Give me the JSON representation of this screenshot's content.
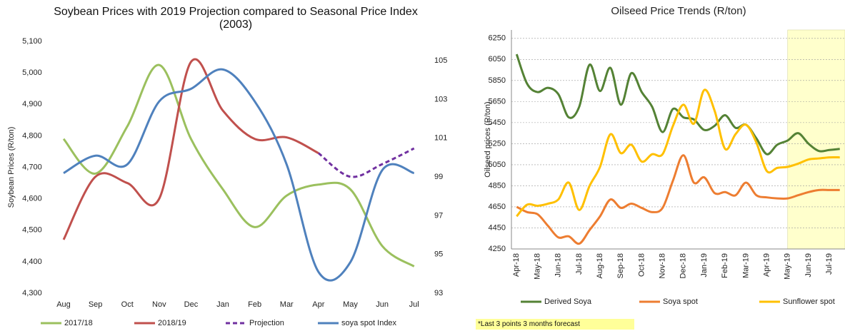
{
  "chart_data": [
    {
      "type": "line",
      "title": "Soybean Prices with 2019 Projection compared to Seasonal Price Index (2003)",
      "y_label": "Soybean Prices (R/ton)",
      "categories": [
        "Aug",
        "Sep",
        "Oct",
        "Nov",
        "Dec",
        "Jan",
        "Feb",
        "Mar",
        "Apr",
        "May",
        "Jun",
        "Jul"
      ],
      "ylim": [
        4300,
        5100
      ],
      "yticks": [
        {
          "value": 4300,
          "label": "4,300"
        },
        {
          "value": 4400,
          "label": "4,400"
        },
        {
          "value": 4500,
          "label": "4,500"
        },
        {
          "value": 4600,
          "label": "4,600"
        },
        {
          "value": 4700,
          "label": "4,700"
        },
        {
          "value": 4800,
          "label": "4,800"
        },
        {
          "value": 4900,
          "label": "4,900"
        },
        {
          "value": 5000,
          "label": "5,000"
        },
        {
          "value": 5100,
          "label": "5,100"
        }
      ],
      "y2lim": [
        93,
        106
      ],
      "y2ticks": [
        93,
        95,
        97,
        99,
        101,
        103,
        105
      ],
      "grid": false,
      "legend": "bottom",
      "series": [
        {
          "name": "2017/18",
          "color": "#9bc05e",
          "values": [
            4790,
            4680,
            4830,
            5025,
            4790,
            4630,
            4510,
            4610,
            4645,
            4630,
            4450,
            4385
          ]
        },
        {
          "name": "2018/19",
          "color": "#c0504d",
          "values": [
            4470,
            4670,
            4650,
            4600,
            5035,
            4880,
            4790,
            4795,
            4745,
            null,
            null,
            null
          ]
        },
        {
          "name": "Projection",
          "color": "#7030a0",
          "dashed": true,
          "values": [
            null,
            null,
            null,
            null,
            null,
            null,
            null,
            null,
            4745,
            4670,
            4710,
            4760
          ]
        },
        {
          "name": "soya spot Index",
          "color": "#4f81bd",
          "axis": "y2",
          "values": [
            99.2,
            100.1,
            99.65,
            102.9,
            103.55,
            104.55,
            102.9,
            99.65,
            94.1,
            94.6,
            99.35,
            99.2
          ]
        }
      ]
    },
    {
      "type": "line",
      "title": "Oilseed Price Trends (R/ton)",
      "y_label": "Oilseed prices (R/ton)",
      "note": "*Last 3 points 3 months forecast",
      "forecast_shade": {
        "from": "May-19",
        "color": "#ffffcc"
      },
      "categories": [
        "Apr-18",
        null,
        "May-18",
        null,
        "Jun-18",
        null,
        "Jul-18",
        null,
        "Aug-18",
        null,
        "Sep-18",
        null,
        "Oct-18",
        null,
        "Nov-18",
        null,
        "Dec-18",
        null,
        "Jan-19",
        null,
        "Feb-19",
        null,
        "Mar-19",
        null,
        "Apr-19",
        null,
        "May-19",
        null,
        "Jun-19",
        null,
        "Jul-19",
        null
      ],
      "ylim": [
        4250,
        6330
      ],
      "yticks": [
        4250,
        4450,
        4650,
        4850,
        5050,
        5250,
        5450,
        5650,
        5850,
        6050,
        6250
      ],
      "grid": true,
      "legend": "bottom",
      "series": [
        {
          "name": "Derived Soya",
          "color": "#548235",
          "values": [
            6100,
            5820,
            5740,
            5780,
            5720,
            5500,
            5600,
            6000,
            5750,
            5970,
            5620,
            5920,
            5740,
            5600,
            5360,
            5580,
            5500,
            5480,
            5380,
            5420,
            5520,
            5400,
            5430,
            5300,
            5150,
            5240,
            5280,
            5350,
            5250,
            5180,
            5190,
            5200
          ]
        },
        {
          "name": "Soya spot",
          "color": "#ed7d31",
          "values": [
            4650,
            4600,
            4580,
            4470,
            4360,
            4370,
            4300,
            4430,
            4560,
            4720,
            4640,
            4680,
            4640,
            4600,
            4640,
            4900,
            5140,
            4880,
            4930,
            4780,
            4790,
            4760,
            4880,
            4760,
            4740,
            4730,
            4730,
            4760,
            4790,
            4810,
            4810,
            4810
          ]
        },
        {
          "name": "Sunflower spot",
          "color": "#ffc000",
          "values": [
            4560,
            4670,
            4660,
            4680,
            4720,
            4880,
            4620,
            4850,
            5030,
            5340,
            5160,
            5240,
            5080,
            5150,
            5150,
            5420,
            5620,
            5440,
            5760,
            5560,
            5200,
            5340,
            5430,
            5260,
            4990,
            5020,
            5030,
            5060,
            5100,
            5110,
            5120,
            5120
          ]
        }
      ]
    }
  ]
}
